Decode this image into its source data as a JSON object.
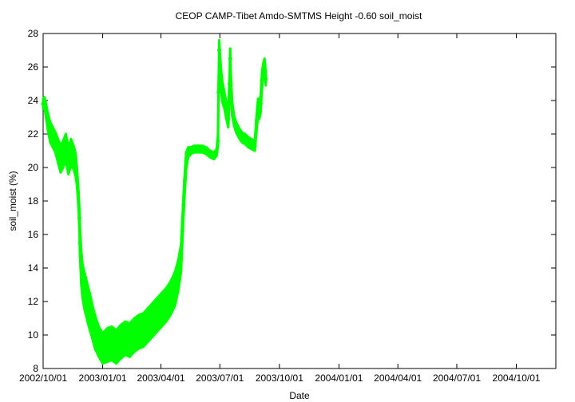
{
  "chart_data": {
    "type": "scatter",
    "title": "CEOP CAMP-Tibet Amdo-SMTMS Height -0.60 soil_moist",
    "xlabel": "Date",
    "ylabel": "soil_moist (%)",
    "ylim": [
      8,
      28
    ],
    "xlim": [
      "2002-10-01",
      "2004-12-01"
    ],
    "y_ticks": [
      "8",
      "10",
      "12",
      "14",
      "16",
      "18",
      "20",
      "22",
      "24",
      "26",
      "28"
    ],
    "x_ticks": [
      {
        "date": "2002-10-01",
        "label": "2002/10/01"
      },
      {
        "date": "2003-01-01",
        "label": "2003/01/01"
      },
      {
        "date": "2003-04-01",
        "label": "2003/04/01"
      },
      {
        "date": "2003-07-01",
        "label": "2003/07/01"
      },
      {
        "date": "2003-10-01",
        "label": "2003/10/01"
      },
      {
        "date": "2004-01-01",
        "label": "2004/01/01"
      },
      {
        "date": "2004-04-01",
        "label": "2004/04/01"
      },
      {
        "date": "2004-07-01",
        "label": "2004/07/01"
      },
      {
        "date": "2004-10-01",
        "label": "2004/10/01"
      }
    ],
    "grid": false,
    "legend": "none",
    "series": [
      {
        "color": "#00ff00",
        "x": [
          "2002-10-01",
          "2002-10-03",
          "2002-10-05",
          "2002-10-08",
          "2002-10-12",
          "2002-10-16",
          "2002-10-20",
          "2002-10-24",
          "2002-10-28",
          "2002-11-01",
          "2002-11-05",
          "2002-11-09",
          "2002-11-13",
          "2002-11-17",
          "2002-11-20",
          "2002-11-22",
          "2002-11-24",
          "2002-11-26",
          "2002-11-27",
          "2002-11-29",
          "2002-12-01",
          "2002-12-04",
          "2002-12-08",
          "2002-12-12",
          "2002-12-16",
          "2002-12-20",
          "2002-12-26",
          "2003-01-01",
          "2003-01-08",
          "2003-01-15",
          "2003-01-22",
          "2003-01-29",
          "2003-02-05",
          "2003-02-12",
          "2003-02-19",
          "2003-02-26",
          "2003-03-05",
          "2003-03-12",
          "2003-03-19",
          "2003-03-26",
          "2003-04-02",
          "2003-04-09",
          "2003-04-16",
          "2003-04-23",
          "2003-04-28",
          "2003-05-02",
          "2003-05-04",
          "2003-05-06",
          "2003-05-08",
          "2003-05-10",
          "2003-05-13",
          "2003-05-17",
          "2003-05-22",
          "2003-05-28",
          "2003-06-04",
          "2003-06-10",
          "2003-06-16",
          "2003-06-22",
          "2003-06-26",
          "2003-06-28",
          "2003-06-29",
          "2003-06-30",
          "2003-07-01",
          "2003-07-03",
          "2003-07-05",
          "2003-07-08",
          "2003-07-11",
          "2003-07-14",
          "2003-07-16",
          "2003-07-17",
          "2003-07-18",
          "2003-07-20",
          "2003-07-23",
          "2003-07-26",
          "2003-07-30",
          "2003-08-04",
          "2003-08-09",
          "2003-08-14",
          "2003-08-19",
          "2003-08-24",
          "2003-08-27",
          "2003-08-29",
          "2003-08-31",
          "2003-09-02",
          "2003-09-04",
          "2003-09-06",
          "2003-09-08",
          "2003-09-10"
        ],
        "y": [
          23.8,
          23.9,
          23.5,
          22.8,
          22.1,
          21.8,
          21.5,
          21.0,
          20.5,
          20.8,
          21.2,
          20.4,
          20.9,
          20.6,
          20.2,
          19.5,
          18.5,
          17.0,
          15.5,
          14.0,
          13.2,
          12.6,
          12.0,
          11.4,
          10.8,
          10.2,
          9.6,
          9.2,
          9.4,
          9.5,
          9.3,
          9.6,
          9.8,
          9.7,
          10.0,
          10.2,
          10.3,
          10.6,
          10.9,
          11.2,
          11.5,
          11.8,
          12.2,
          12.8,
          13.6,
          14.6,
          16.2,
          17.8,
          19.2,
          20.4,
          20.9,
          21.0,
          21.1,
          21.1,
          21.1,
          21.0,
          20.8,
          20.7,
          20.9,
          21.6,
          24.5,
          27.0,
          26.2,
          25.2,
          24.5,
          24.0,
          23.4,
          22.9,
          25.0,
          26.5,
          25.0,
          23.5,
          22.8,
          22.4,
          22.1,
          21.8,
          21.7,
          21.5,
          21.4,
          21.3,
          22.8,
          23.6,
          23.4,
          23.8,
          25.2,
          25.8,
          26.1,
          25.3
        ],
        "y_spread": [
          0.3,
          0.3,
          0.4,
          0.5,
          0.6,
          0.6,
          0.6,
          0.7,
          0.8,
          0.8,
          0.8,
          0.8,
          0.8,
          0.7,
          0.7,
          0.5,
          0.5,
          0.6,
          0.8,
          1.0,
          1.0,
          1.1,
          1.1,
          1.1,
          1.0,
          1.0,
          0.9,
          0.9,
          1.0,
          1.0,
          1.0,
          1.0,
          1.0,
          1.0,
          1.0,
          1.0,
          1.0,
          1.0,
          1.0,
          1.0,
          1.0,
          1.0,
          1.0,
          1.0,
          0.9,
          0.8,
          0.7,
          0.6,
          0.6,
          0.5,
          0.3,
          0.2,
          0.2,
          0.2,
          0.2,
          0.2,
          0.2,
          0.2,
          0.2,
          0.3,
          0.6,
          0.6,
          0.6,
          0.6,
          0.6,
          0.5,
          0.5,
          0.5,
          0.6,
          0.6,
          0.5,
          0.4,
          0.3,
          0.3,
          0.3,
          0.3,
          0.3,
          0.3,
          0.3,
          0.3,
          0.5,
          0.5,
          0.5,
          0.5,
          0.5,
          0.4,
          0.4,
          0.4
        ]
      }
    ]
  }
}
